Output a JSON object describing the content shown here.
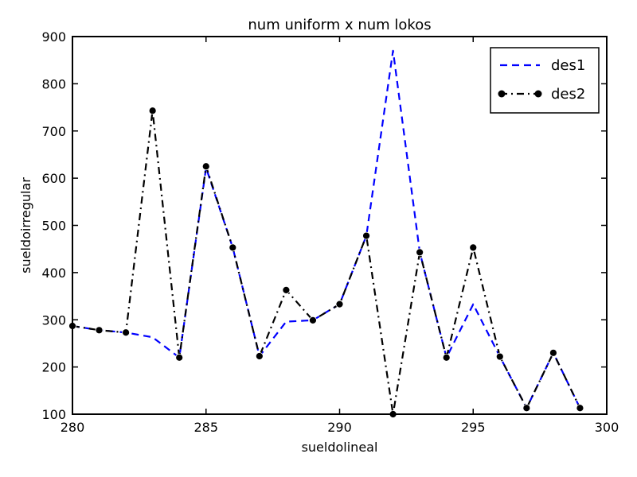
{
  "chart_data": {
    "type": "line",
    "title": "num uniform x num lokos",
    "xlabel": "sueldolineal",
    "ylabel": "sueldoirregular",
    "xlim": [
      280,
      300
    ],
    "ylim": [
      100,
      900
    ],
    "xticks": [
      280,
      285,
      290,
      295,
      300
    ],
    "yticks": [
      100,
      200,
      300,
      400,
      500,
      600,
      700,
      800,
      900
    ],
    "grid": false,
    "legend_position": "top-right",
    "series": [
      {
        "name": "des1",
        "color": "#0000ff",
        "line_style": "dashed",
        "marker": "none",
        "x": [
          280,
          281,
          282,
          283,
          284,
          285,
          286,
          287,
          288,
          289,
          290,
          291,
          292,
          293,
          294,
          295,
          296,
          297,
          298,
          299
        ],
        "y": [
          287,
          278,
          273,
          263,
          220,
          622,
          453,
          223,
          296,
          299,
          333,
          478,
          870,
          443,
          220,
          333,
          222,
          113,
          230,
          113
        ]
      },
      {
        "name": "des2",
        "color": "#000000",
        "line_style": "dash-dot",
        "marker": "circle",
        "x": [
          280,
          281,
          282,
          283,
          284,
          285,
          286,
          287,
          288,
          289,
          290,
          291,
          292,
          293,
          294,
          295,
          296,
          297,
          298,
          299
        ],
        "y": [
          287,
          278,
          273,
          743,
          220,
          625,
          453,
          223,
          363,
          299,
          333,
          478,
          100,
          443,
          220,
          453,
          222,
          113,
          230,
          113
        ]
      }
    ]
  }
}
